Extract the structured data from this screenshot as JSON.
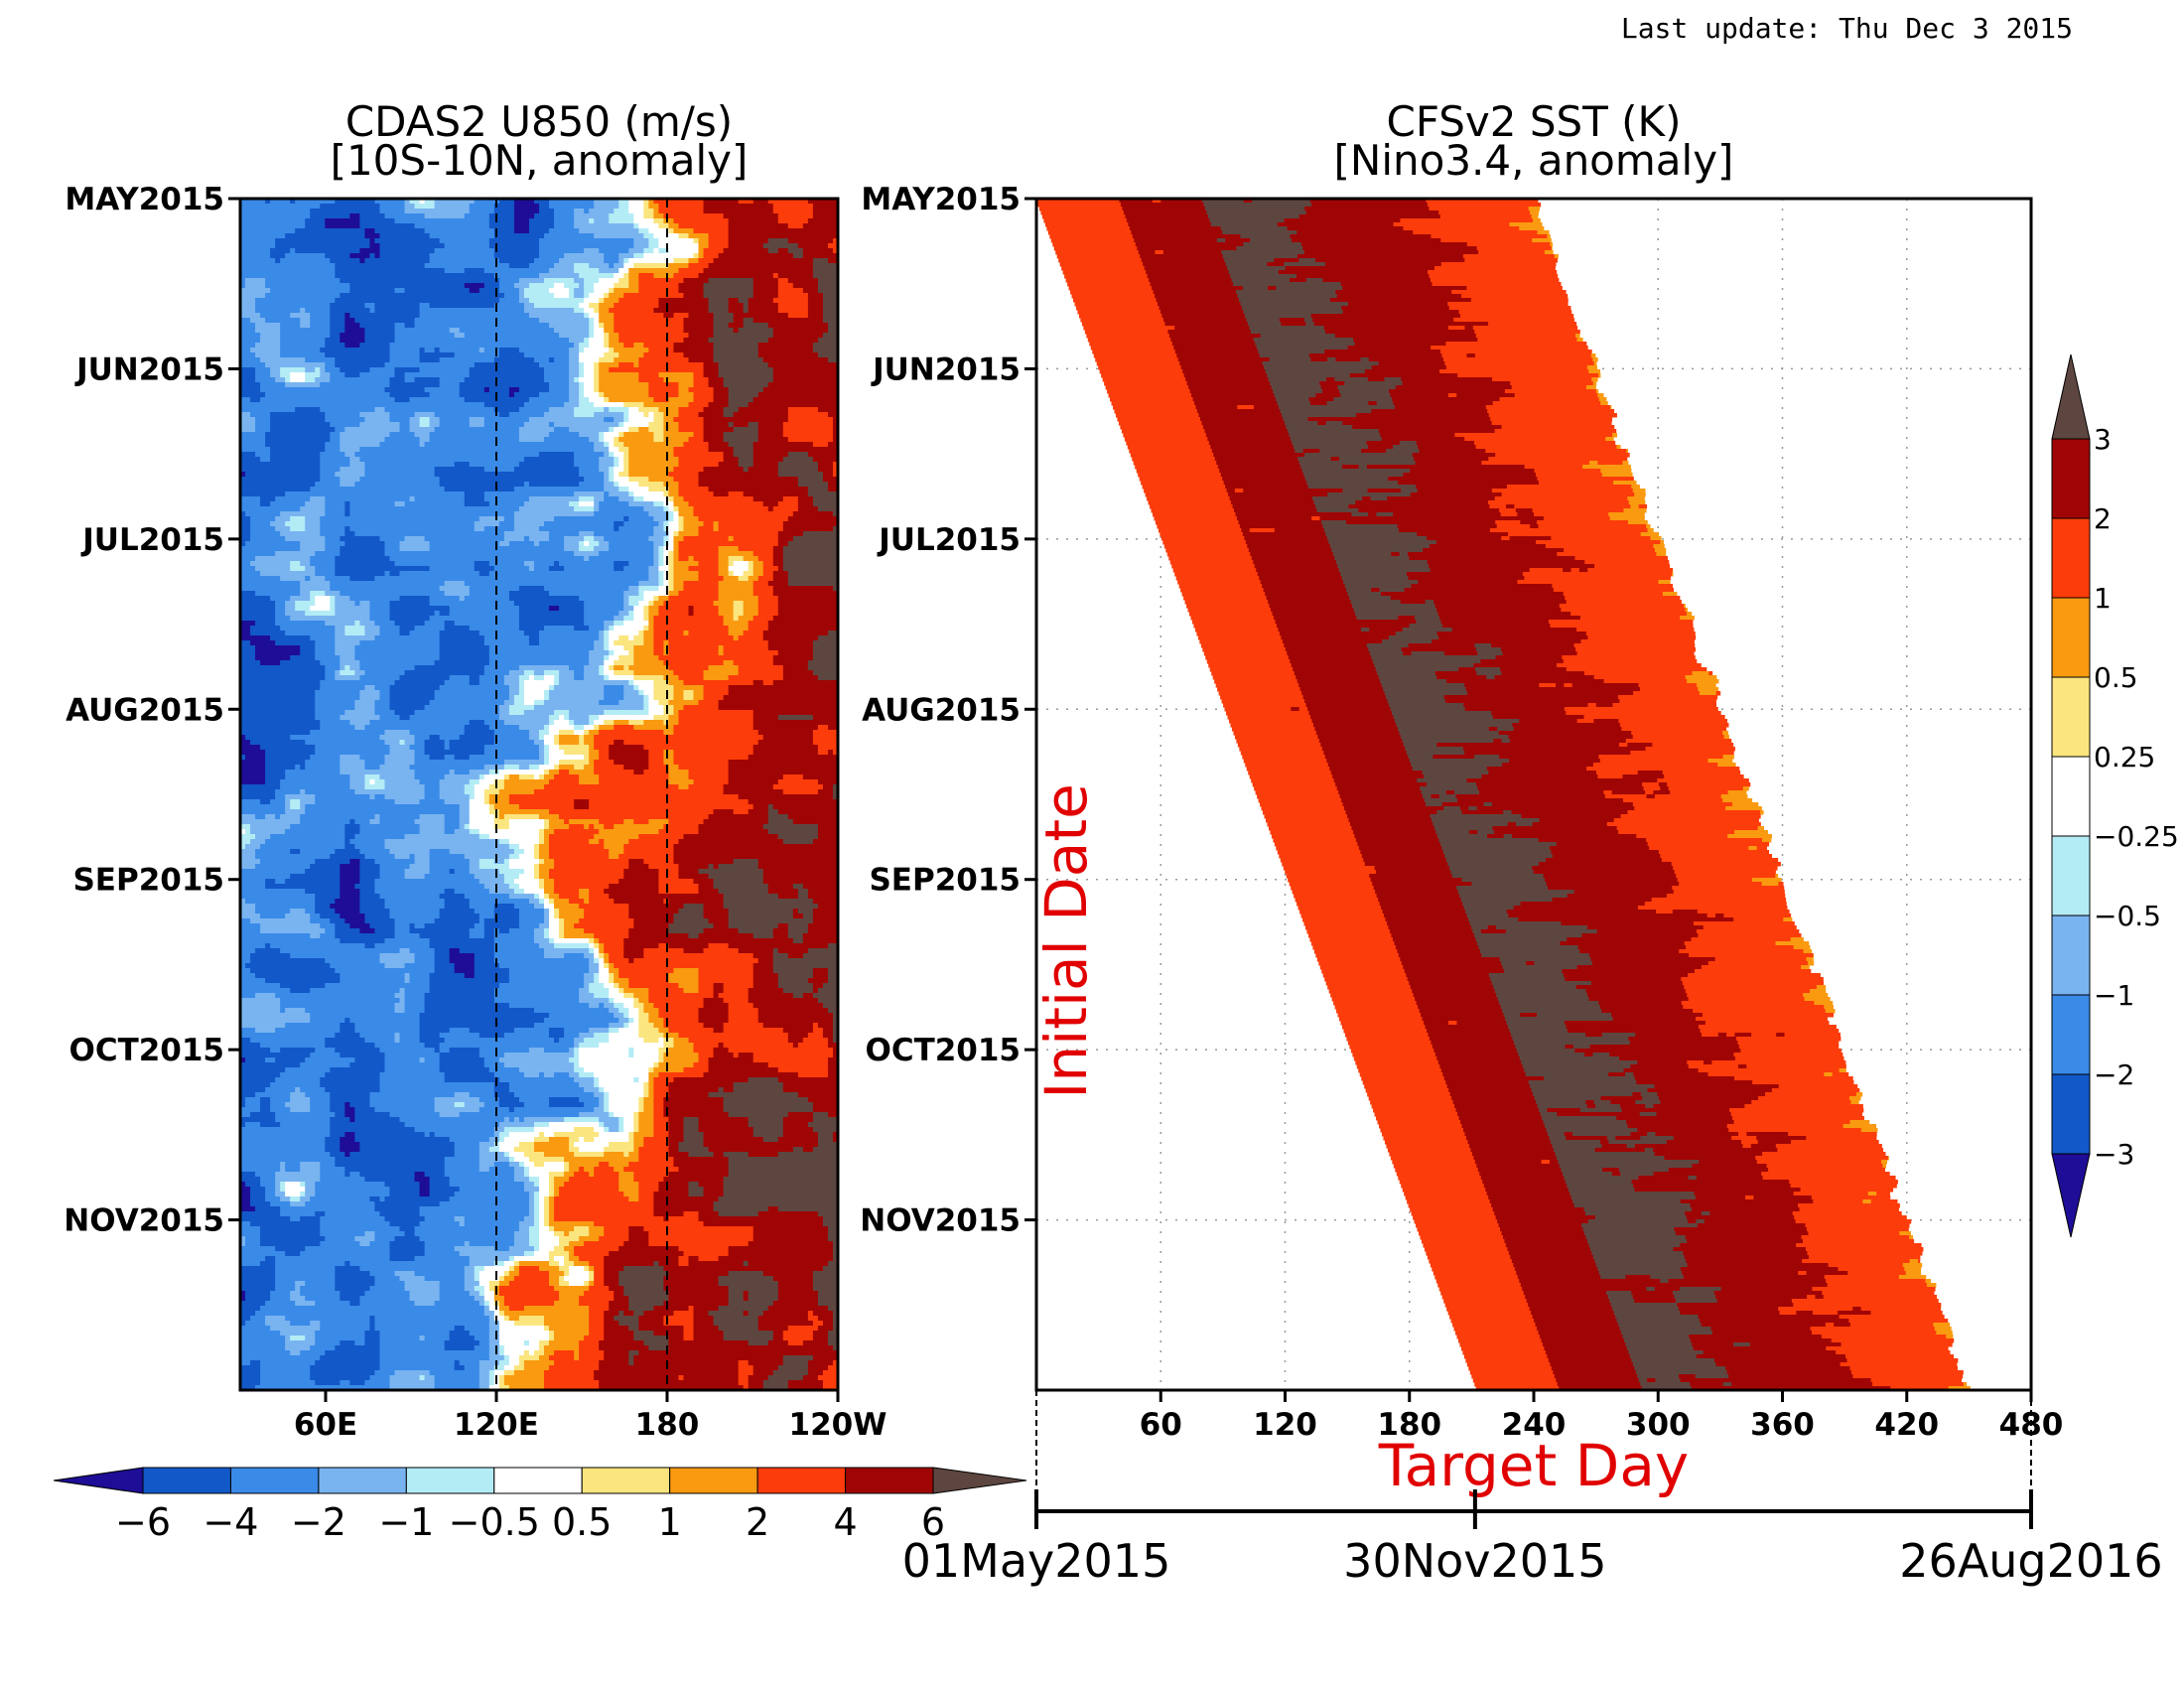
{
  "last_update": "Last update: Thu Dec 3 2015",
  "chart_data": [
    {
      "type": "heatmap",
      "title": "CDAS2 U850 (m/s)",
      "subtitle": "[10S-10N, anomaly]",
      "y_tick_labels": [
        "MAY2015",
        "JUN2015",
        "JUL2015",
        "AUG2015",
        "SEP2015",
        "OCT2015",
        "NOV2015"
      ],
      "x_tick_labels": [
        "60E",
        "120E",
        "180",
        "120W"
      ],
      "x_range_deg_east": [
        30,
        240
      ],
      "x_ticks_deg_east": [
        60,
        120,
        180,
        240
      ],
      "dashed_reference_lines_deg_east": [
        120,
        180
      ],
      "y_range_months": [
        "MAY2015",
        "DEC2015"
      ],
      "colorbar": {
        "orientation": "horizontal",
        "labels": [
          "−6",
          "−4",
          "−2",
          "−1",
          "−0.5",
          "0.5",
          "1",
          "2",
          "4",
          "6"
        ],
        "levels": [
          -6,
          -4,
          -2,
          -1,
          -0.5,
          0.5,
          1,
          2,
          4,
          6
        ],
        "colors": [
          "#1e0d96",
          "#1258c8",
          "#3a8ae8",
          "#79b4f0",
          "#b4ecf6",
          "#ffffff",
          "#fbe57f",
          "#f99a10",
          "#fc3c0a",
          "#a00505",
          "#5e4640"
        ]
      },
      "anomaly_regimes": [
        {
          "period": "MAY2015-JUN2015",
          "west_of_120E": "easterly (-1 to -4)",
          "east_of_180": "westerly (+2 to +6)"
        },
        {
          "period": "JUL2015-AUG2015",
          "west_of_120E": "easterly (-1 to -4)",
          "120E_to_120W": "westerly bursts (+4 to >6)"
        },
        {
          "period": "SEP2015-NOV2015",
          "west_of_120E": "easterly (-2 to -4)",
          "east_of_150E": "strong westerly (+4 to >6)"
        }
      ]
    },
    {
      "type": "heatmap",
      "title": "CFSv2 SST (K)",
      "subtitle": "[Nino3.4, anomaly]",
      "y_tick_labels": [
        "MAY2015",
        "JUN2015",
        "JUL2015",
        "AUG2015",
        "SEP2015",
        "OCT2015",
        "NOV2015"
      ],
      "x_tick_labels": [
        "60",
        "120",
        "180",
        "240",
        "300",
        "360",
        "420",
        "480"
      ],
      "x_ticks": [
        60,
        120,
        180,
        240,
        300,
        360,
        420,
        480
      ],
      "x_range": [
        0,
        480
      ],
      "xlabel": "Target Day",
      "ylabel": "Initial Date",
      "grid": "dotted",
      "secondary_axis": {
        "labels": [
          "01May2015",
          "30Nov2015",
          "26Aug2016"
        ],
        "target_days": [
          0,
          213,
          483
        ]
      },
      "forecast_band": [
        {
          "initial_date": "MAY2015",
          "target_day_start": 0,
          "target_day_end": 240,
          "anomaly_bands": [
            {
              "to_day": 60,
              "K": "1-2"
            },
            {
              "to_day": 180,
              "K": "2-3"
            },
            {
              "to_day": 240,
              "K": ">3 / 2-3"
            }
          ]
        },
        {
          "initial_date": "JUL2015",
          "target_day_start": 55,
          "target_day_end": 300,
          "anomaly_bands": [
            {
              "to_day": 100,
              "K": "1-2"
            },
            {
              "to_day": 250,
              "K": ">3 / 2-3"
            },
            {
              "to_day": 300,
              "K": "1-2"
            }
          ]
        },
        {
          "initial_date": "SEP2015",
          "target_day_start": 120,
          "target_day_end": 360,
          "anomaly_bands": [
            {
              "to_day": 250,
              "K": "2-3"
            },
            {
              "to_day": 330,
              "K": "1-2"
            },
            {
              "to_day": 360,
              "K": "0.5-1"
            }
          ]
        },
        {
          "initial_date": "NOV2015",
          "target_day_start": 190,
          "target_day_end": 440,
          "anomaly_bands": [
            {
              "to_day": 280,
              "K": "2-3"
            },
            {
              "to_day": 360,
              "K": "1-2"
            },
            {
              "to_day": 440,
              "K": "0.25-1"
            }
          ]
        }
      ],
      "colorbar": {
        "orientation": "vertical",
        "labels": [
          "3",
          "2",
          "1",
          "0.5",
          "0.25",
          "−0.25",
          "−0.5",
          "−1",
          "−2",
          "−3"
        ],
        "levels": [
          3,
          2,
          1,
          0.5,
          0.25,
          -0.25,
          -0.5,
          -1,
          -2,
          -3
        ],
        "colors": [
          "#5e4640",
          "#a00505",
          "#fc3c0a",
          "#f99a10",
          "#fbe57f",
          "#ffffff",
          "#b4ecf6",
          "#79b4f0",
          "#3a8ae8",
          "#1258c8",
          "#1e0d96"
        ]
      }
    }
  ]
}
